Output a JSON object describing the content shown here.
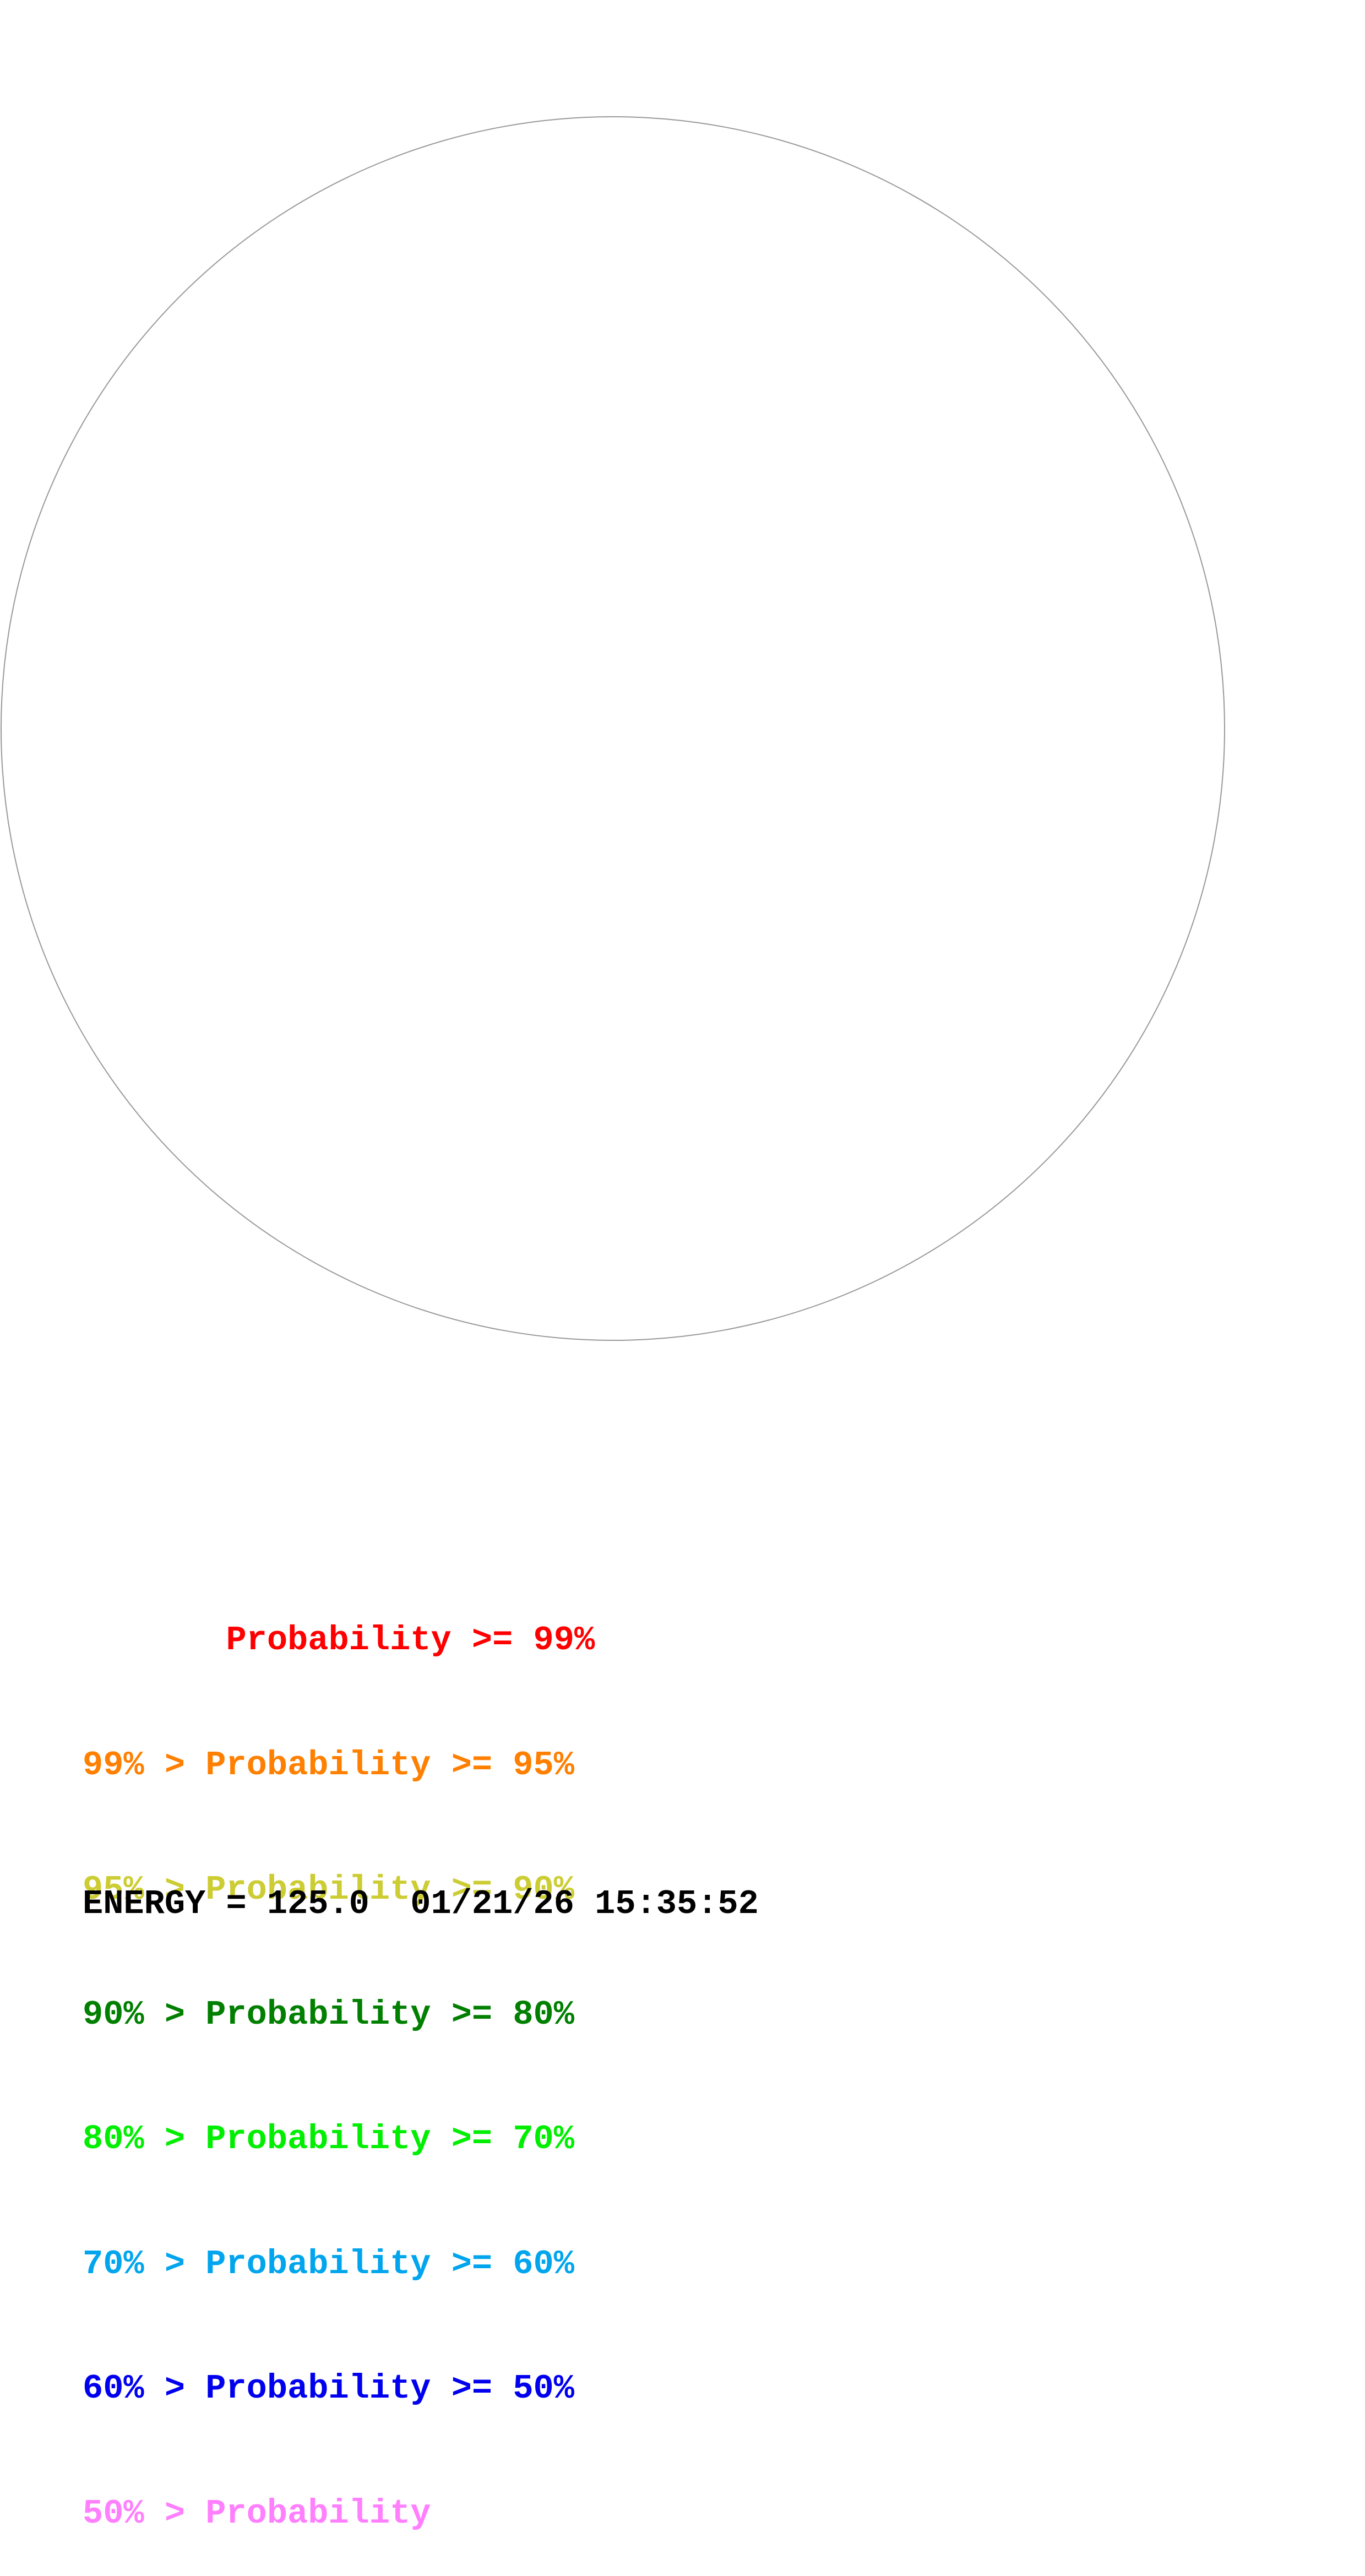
{
  "diagram": {
    "circle_stroke_color": "#999999"
  },
  "legend": {
    "rows": [
      {
        "text": "       Probability >= 99%",
        "color": "#ff0000"
      },
      {
        "text": "99% > Probability >= 95%",
        "color": "#ff7f00"
      },
      {
        "text": "95% > Probability >= 90%",
        "color": "#cccc33"
      },
      {
        "text": "90% > Probability >= 80%",
        "color": "#007f00"
      },
      {
        "text": "80% > Probability >= 70%",
        "color": "#00ee00"
      },
      {
        "text": "70% > Probability >= 60%",
        "color": "#00a5ee"
      },
      {
        "text": "60% > Probability >= 50%",
        "color": "#0000ee"
      },
      {
        "text": "50% > Probability",
        "color": "#ff7fff"
      }
    ]
  },
  "footer": {
    "text": "ENERGY = 125.0  01/21/26 15:35:52",
    "color": "#000000"
  }
}
